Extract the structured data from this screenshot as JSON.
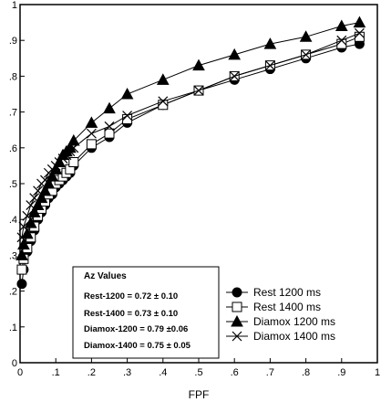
{
  "chart_data": {
    "type": "line",
    "xlabel": "FPF",
    "ylabel": "",
    "xlim": [
      0,
      1
    ],
    "ylim": [
      0,
      1
    ],
    "x_ticks": [
      "0",
      ".1",
      ".2",
      ".3",
      ".4",
      ".5",
      ".6",
      ".7",
      ".8",
      ".9",
      "1"
    ],
    "y_ticks": [
      "0",
      ".1",
      ".2",
      ".3",
      ".4",
      ".5",
      ".6",
      ".7",
      ".8",
      ".9",
      "1"
    ],
    "grid": false,
    "legend_position": "bottom-right",
    "series": [
      {
        "name": "Rest 1200 ms",
        "marker": "filled-circle",
        "points": [
          [
            0.005,
            0.22
          ],
          [
            0.01,
            0.26
          ],
          [
            0.02,
            0.31
          ],
          [
            0.03,
            0.34
          ],
          [
            0.04,
            0.37
          ],
          [
            0.05,
            0.4
          ],
          [
            0.06,
            0.42
          ],
          [
            0.07,
            0.44
          ],
          [
            0.08,
            0.46
          ],
          [
            0.09,
            0.47
          ],
          [
            0.1,
            0.49
          ],
          [
            0.11,
            0.5
          ],
          [
            0.12,
            0.51
          ],
          [
            0.13,
            0.52
          ],
          [
            0.14,
            0.53
          ],
          [
            0.15,
            0.55
          ],
          [
            0.2,
            0.6
          ],
          [
            0.25,
            0.63
          ],
          [
            0.3,
            0.67
          ],
          [
            0.4,
            0.72
          ],
          [
            0.5,
            0.76
          ],
          [
            0.6,
            0.79
          ],
          [
            0.7,
            0.82
          ],
          [
            0.8,
            0.85
          ],
          [
            0.9,
            0.88
          ],
          [
            0.95,
            0.89
          ]
        ]
      },
      {
        "name": "Rest 1400 ms",
        "marker": "open-square",
        "points": [
          [
            0.005,
            0.26
          ],
          [
            0.01,
            0.29
          ],
          [
            0.02,
            0.32
          ],
          [
            0.03,
            0.35
          ],
          [
            0.04,
            0.38
          ],
          [
            0.05,
            0.41
          ],
          [
            0.06,
            0.43
          ],
          [
            0.07,
            0.45
          ],
          [
            0.08,
            0.47
          ],
          [
            0.09,
            0.48
          ],
          [
            0.1,
            0.5
          ],
          [
            0.11,
            0.51
          ],
          [
            0.12,
            0.52
          ],
          [
            0.13,
            0.53
          ],
          [
            0.14,
            0.54
          ],
          [
            0.15,
            0.56
          ],
          [
            0.2,
            0.61
          ],
          [
            0.25,
            0.64
          ],
          [
            0.3,
            0.68
          ],
          [
            0.4,
            0.72
          ],
          [
            0.5,
            0.76
          ],
          [
            0.6,
            0.8
          ],
          [
            0.7,
            0.83
          ],
          [
            0.8,
            0.86
          ],
          [
            0.9,
            0.89
          ],
          [
            0.95,
            0.91
          ]
        ]
      },
      {
        "name": "Diamox 1200 ms",
        "marker": "filled-triangle",
        "points": [
          [
            0.005,
            0.3
          ],
          [
            0.01,
            0.33
          ],
          [
            0.02,
            0.36
          ],
          [
            0.03,
            0.39
          ],
          [
            0.04,
            0.42
          ],
          [
            0.05,
            0.44
          ],
          [
            0.06,
            0.46
          ],
          [
            0.07,
            0.48
          ],
          [
            0.08,
            0.5
          ],
          [
            0.09,
            0.52
          ],
          [
            0.1,
            0.54
          ],
          [
            0.11,
            0.56
          ],
          [
            0.12,
            0.58
          ],
          [
            0.13,
            0.59
          ],
          [
            0.14,
            0.6
          ],
          [
            0.15,
            0.62
          ],
          [
            0.2,
            0.67
          ],
          [
            0.25,
            0.71
          ],
          [
            0.3,
            0.75
          ],
          [
            0.4,
            0.79
          ],
          [
            0.5,
            0.83
          ],
          [
            0.6,
            0.86
          ],
          [
            0.7,
            0.89
          ],
          [
            0.8,
            0.91
          ],
          [
            0.9,
            0.94
          ],
          [
            0.95,
            0.95
          ]
        ]
      },
      {
        "name": "Diamox 1400 ms",
        "marker": "x",
        "points": [
          [
            0.005,
            0.35
          ],
          [
            0.01,
            0.38
          ],
          [
            0.02,
            0.41
          ],
          [
            0.03,
            0.44
          ],
          [
            0.04,
            0.46
          ],
          [
            0.05,
            0.48
          ],
          [
            0.06,
            0.5
          ],
          [
            0.07,
            0.51
          ],
          [
            0.08,
            0.53
          ],
          [
            0.09,
            0.54
          ],
          [
            0.1,
            0.55
          ],
          [
            0.11,
            0.56
          ],
          [
            0.12,
            0.57
          ],
          [
            0.13,
            0.58
          ],
          [
            0.14,
            0.59
          ],
          [
            0.15,
            0.6
          ],
          [
            0.2,
            0.64
          ],
          [
            0.25,
            0.66
          ],
          [
            0.3,
            0.69
          ],
          [
            0.4,
            0.73
          ],
          [
            0.5,
            0.76
          ],
          [
            0.6,
            0.8
          ],
          [
            0.7,
            0.83
          ],
          [
            0.8,
            0.86
          ],
          [
            0.9,
            0.9
          ],
          [
            0.95,
            0.92
          ]
        ]
      }
    ],
    "annotation": {
      "title": "Az Values",
      "lines": [
        "Rest-1200 = 0.72 ± 0.10",
        "Rest-1400 = 0.73 ± 0.10",
        "Diamox-1200 = 0.79 ±0.06",
        "Diamox-1400 = 0.75 ± 0.05"
      ]
    }
  }
}
